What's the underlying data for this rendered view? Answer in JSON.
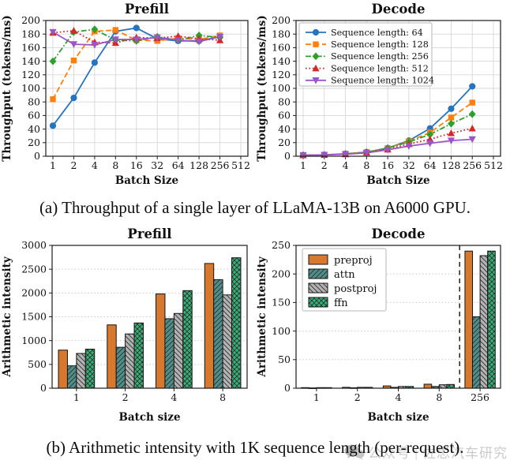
{
  "page": {
    "caption_a": "(a) Throughput of a single layer of LLaMA-13B on A6000 GPU.",
    "caption_b": "(b) Arithmetic intensity with 1K sequence length (per-request).",
    "watermark": {
      "icon": "wechat-bubbles-icon",
      "text": "公众号 | 佐思汽车研究",
      "color": "#c2c2c2"
    }
  },
  "chart_data": [
    {
      "id": "prefill-line",
      "type": "line",
      "title": "Prefill",
      "xlabel": "Batch Size",
      "ylabel": "Throughput (tokens/ms)",
      "xticks": [
        "1",
        "2",
        "4",
        "8",
        "16",
        "32",
        "64",
        "128",
        "256",
        "512"
      ],
      "ylim": [
        0,
        200
      ],
      "ytick_step": 20,
      "grid": true,
      "legend": false,
      "series": [
        {
          "name": "Sequence length: 64",
          "color": "#2474bf",
          "marker": "circle",
          "linestyle": "solid",
          "values": [
            45,
            86,
            138,
            184,
            189,
            173,
            170,
            170,
            176
          ]
        },
        {
          "name": "Sequence length: 128",
          "color": "#ff7f0e",
          "marker": "square",
          "linestyle": "dashed",
          "values": [
            84,
            141,
            184,
            186,
            171,
            170,
            174,
            172,
            178
          ]
        },
        {
          "name": "Sequence length: 256",
          "color": "#2ca02c",
          "marker": "diamond",
          "linestyle": "dashdot",
          "values": [
            140,
            183,
            187,
            171,
            170,
            176,
            171,
            178,
            175
          ]
        },
        {
          "name": "Sequence length: 512",
          "color": "#d62728",
          "marker": "triangle-up",
          "linestyle": "dotted",
          "values": [
            182,
            185,
            168,
            167,
            175,
            174,
            177,
            173,
            171
          ]
        },
        {
          "name": "Sequence length: 1024",
          "color": "#9a55c8",
          "marker": "triangle-down",
          "linestyle": "solid",
          "values": [
            183,
            165,
            164,
            172,
            172,
            175,
            171,
            169,
            176
          ]
        }
      ]
    },
    {
      "id": "decode-line",
      "type": "line",
      "title": "Decode",
      "xlabel": "Batch Size",
      "ylabel": "Throughput (tokens/ms)",
      "xticks": [
        "1",
        "2",
        "4",
        "8",
        "16",
        "32",
        "64",
        "128",
        "256",
        "512"
      ],
      "ylim": [
        0,
        200
      ],
      "ytick_step": 20,
      "grid": true,
      "legend": true,
      "legend_position": "upper left",
      "series": [
        {
          "name": "Sequence length: 64",
          "color": "#2474bf",
          "marker": "circle",
          "linestyle": "solid",
          "values": [
            1.5,
            2,
            3.5,
            6,
            12,
            23,
            41,
            70,
            103
          ]
        },
        {
          "name": "Sequence length: 128",
          "color": "#ff7f0e",
          "marker": "square",
          "linestyle": "dashed",
          "values": [
            1.5,
            2,
            3.5,
            6,
            12,
            22,
            35,
            57,
            79
          ]
        },
        {
          "name": "Sequence length: 256",
          "color": "#2ca02c",
          "marker": "diamond",
          "linestyle": "dashdot",
          "values": [
            1.5,
            2,
            3.5,
            6,
            12,
            21,
            32,
            48,
            62
          ]
        },
        {
          "name": "Sequence length: 512",
          "color": "#d62728",
          "marker": "triangle-up",
          "linestyle": "dotted",
          "values": [
            1.5,
            2,
            3,
            5.5,
            10,
            18,
            25,
            34,
            41
          ]
        },
        {
          "name": "Sequence length: 1024",
          "color": "#9a55c8",
          "marker": "triangle-down",
          "linestyle": "solid",
          "values": [
            1.5,
            2,
            3,
            5,
            9.5,
            15,
            19,
            23,
            25
          ]
        }
      ]
    },
    {
      "id": "prefill-bar",
      "type": "bar",
      "title": "Prefill",
      "xlabel": "Batch size",
      "ylabel": "Arithmetic intensity",
      "categories": [
        "1",
        "2",
        "4",
        "8"
      ],
      "ylim": [
        0,
        3000
      ],
      "ytick_step": 500,
      "grid": true,
      "legend": false,
      "series": [
        {
          "name": "preproj",
          "color": "#d7782f",
          "hatch": "none",
          "values": [
            800,
            1330,
            1980,
            2620
          ]
        },
        {
          "name": "attn",
          "color": "#4e8f8c",
          "hatch": "fwd",
          "values": [
            470,
            860,
            1460,
            2280
          ]
        },
        {
          "name": "postproj",
          "color": "#b3b3b3",
          "hatch": "back",
          "values": [
            730,
            1140,
            1570,
            1960
          ]
        },
        {
          "name": "ffn",
          "color": "#35b276",
          "hatch": "cross",
          "values": [
            820,
            1370,
            2050,
            2740
          ]
        }
      ]
    },
    {
      "id": "decode-bar",
      "type": "bar",
      "title": "Decode",
      "xlabel": "Batch size",
      "ylabel": "Arithmetic intensity",
      "categories": [
        "1",
        "2",
        "4",
        "8",
        "256"
      ],
      "ylim": [
        0,
        250
      ],
      "ytick_step": 50,
      "grid": true,
      "legend": true,
      "legend_position": "upper left",
      "vline_after_index": 3,
      "series": [
        {
          "name": "preproj",
          "color": "#d7782f",
          "hatch": "none",
          "values": [
            1,
            1.5,
            4,
            7,
            240
          ]
        },
        {
          "name": "attn",
          "color": "#4e8f8c",
          "hatch": "fwd",
          "values": [
            0.5,
            0.8,
            1.5,
            3,
            125
          ]
        },
        {
          "name": "postproj",
          "color": "#b3b3b3",
          "hatch": "back",
          "values": [
            1,
            1.5,
            3,
            6,
            232
          ]
        },
        {
          "name": "ffn",
          "color": "#35b276",
          "hatch": "cross",
          "values": [
            1,
            1.5,
            3,
            6.5,
            240
          ]
        }
      ]
    }
  ]
}
